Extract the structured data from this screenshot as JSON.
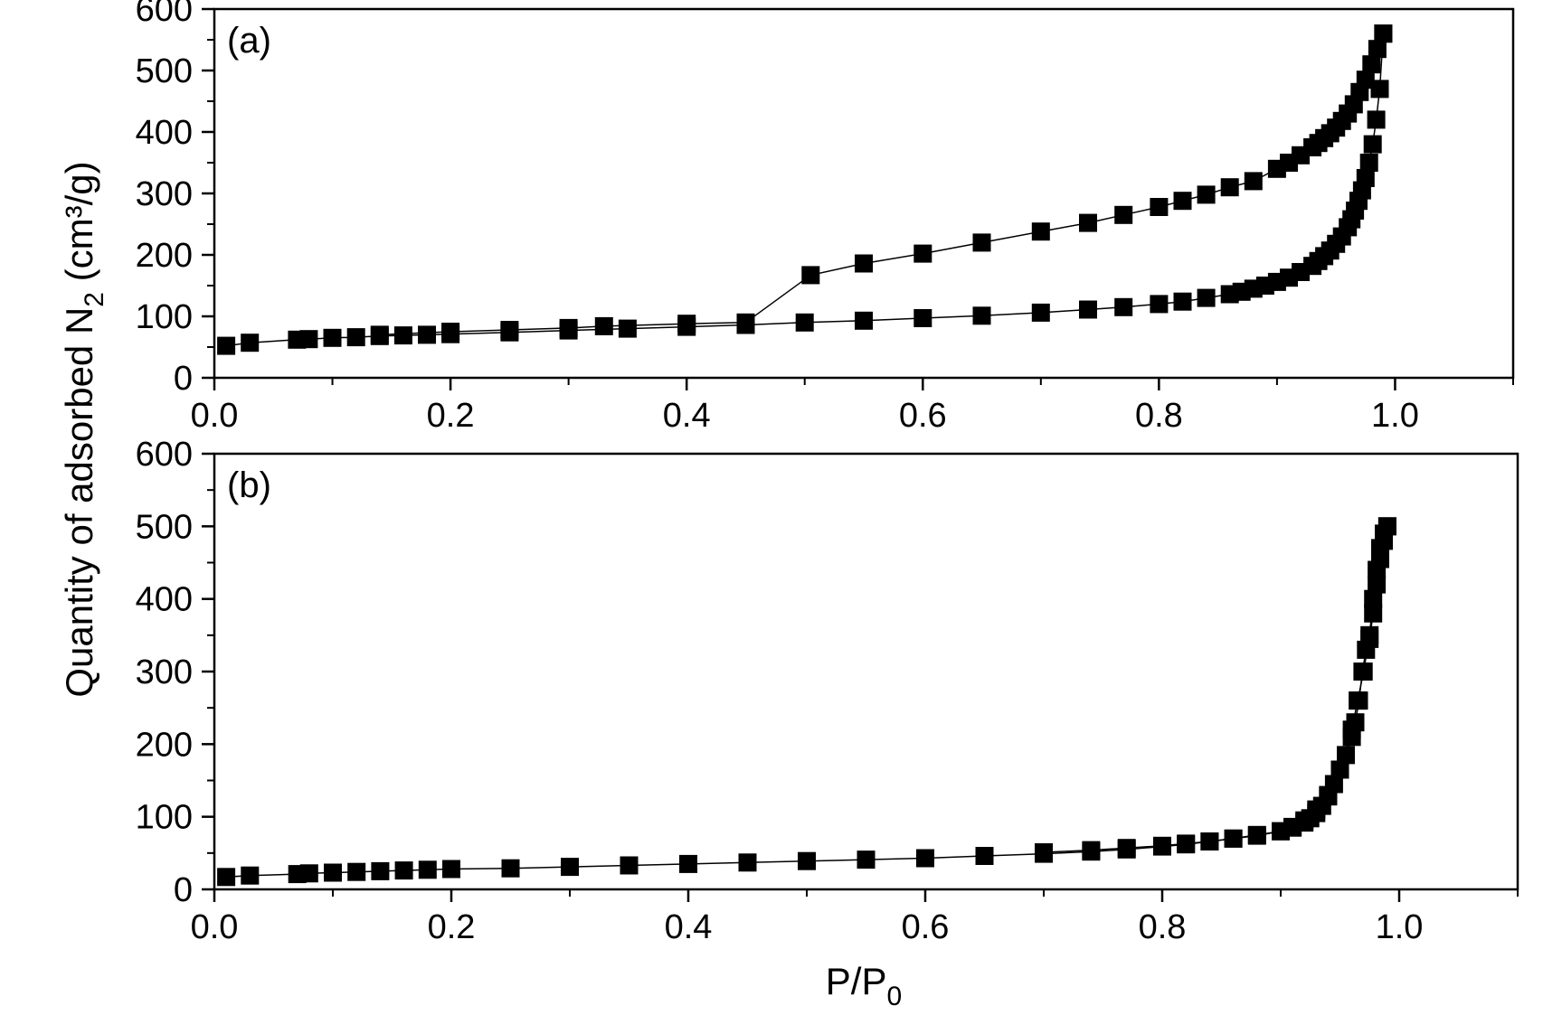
{
  "figure": {
    "ylabel_pre": "Quantity of adsorbed N",
    "ylabel_sub": "2",
    "ylabel_post": " (cm³/g)",
    "xlabel_pre": "P/P",
    "xlabel_sub": "0"
  },
  "colors": {
    "marker": "#000000",
    "line": "#000000",
    "axes": "#000000",
    "background": "#ffffff"
  },
  "chart_data": [
    {
      "type": "line",
      "panel_label": "(a)",
      "marker": "square",
      "grid": false,
      "xlim": [
        0.0,
        1.1
      ],
      "ylim": [
        0,
        600
      ],
      "xticks": [
        "0.0",
        "0.2",
        "0.4",
        "0.6",
        "0.8",
        "1.0"
      ],
      "xtick_values": [
        0.0,
        0.2,
        0.4,
        0.6,
        0.8,
        1.0
      ],
      "yticks": [
        "0",
        "100",
        "200",
        "300",
        "400",
        "500",
        "600"
      ],
      "ytick_values": [
        0,
        100,
        200,
        300,
        400,
        500,
        600
      ],
      "series": [
        {
          "x": [
            0.01,
            0.03,
            0.07,
            0.08,
            0.1,
            0.12,
            0.14,
            0.16,
            0.18,
            0.2,
            0.25,
            0.3,
            0.35,
            0.4,
            0.45,
            0.5,
            0.55,
            0.6,
            0.65,
            0.7,
            0.74,
            0.77,
            0.8,
            0.82,
            0.84,
            0.86,
            0.87,
            0.88,
            0.89,
            0.9,
            0.91,
            0.92,
            0.93,
            0.935,
            0.94,
            0.945,
            0.95,
            0.955,
            0.96,
            0.963,
            0.966,
            0.969,
            0.972,
            0.975,
            0.978,
            0.981,
            0.984,
            0.987,
            0.99
          ],
          "y": [
            52,
            57,
            62,
            63,
            65,
            66,
            68,
            69,
            70,
            71,
            74,
            77,
            80,
            83,
            86,
            90,
            93,
            97,
            101,
            106,
            111,
            115,
            120,
            124,
            130,
            136,
            140,
            145,
            150,
            156,
            163,
            172,
            182,
            190,
            198,
            207,
            218,
            230,
            245,
            258,
            272,
            288,
            305,
            325,
            350,
            380,
            420,
            470,
            560
          ]
        },
        {
          "x": [
            0.99,
            0.985,
            0.98,
            0.975,
            0.97,
            0.965,
            0.96,
            0.955,
            0.95,
            0.945,
            0.94,
            0.935,
            0.93,
            0.92,
            0.91,
            0.9,
            0.88,
            0.86,
            0.84,
            0.82,
            0.8,
            0.77,
            0.74,
            0.7,
            0.65,
            0.6,
            0.55,
            0.505,
            0.45,
            0.4,
            0.33,
            0.3,
            0.25,
            0.2,
            0.14
          ],
          "y": [
            560,
            535,
            510,
            485,
            465,
            445,
            430,
            418,
            407,
            398,
            390,
            382,
            375,
            362,
            350,
            340,
            320,
            310,
            298,
            288,
            278,
            265,
            252,
            238,
            220,
            202,
            186,
            167,
            90,
            88,
            84,
            81,
            78,
            75,
            70
          ]
        }
      ]
    },
    {
      "type": "line",
      "panel_label": "(b)",
      "marker": "square",
      "grid": false,
      "xlim": [
        0.0,
        1.1
      ],
      "ylim": [
        0,
        600
      ],
      "xticks": [
        "0.0",
        "0.2",
        "0.4",
        "0.6",
        "0.8",
        "1.0"
      ],
      "xtick_values": [
        0.0,
        0.2,
        0.4,
        0.6,
        0.8,
        1.0
      ],
      "yticks": [
        "0",
        "100",
        "200",
        "300",
        "400",
        "500",
        "600"
      ],
      "ytick_values": [
        0,
        100,
        200,
        300,
        400,
        500,
        600
      ],
      "series": [
        {
          "x": [
            0.01,
            0.03,
            0.07,
            0.08,
            0.1,
            0.12,
            0.14,
            0.16,
            0.18,
            0.2,
            0.25,
            0.3,
            0.35,
            0.4,
            0.45,
            0.5,
            0.55,
            0.6,
            0.65,
            0.7,
            0.74,
            0.77,
            0.8,
            0.82,
            0.84,
            0.86,
            0.88,
            0.9,
            0.91,
            0.92,
            0.93,
            0.94,
            0.95,
            0.96,
            0.965,
            0.97,
            0.975,
            0.978,
            0.981,
            0.984,
            0.987,
            0.99
          ],
          "y": [
            17,
            19,
            21,
            22,
            23,
            24,
            25,
            26,
            27,
            28,
            29,
            31,
            33,
            35,
            37,
            39,
            41,
            43,
            46,
            49,
            52,
            55,
            59,
            62,
            66,
            70,
            74,
            80,
            86,
            95,
            110,
            130,
            165,
            220,
            260,
            300,
            350,
            400,
            440,
            470,
            490,
            500
          ]
        },
        {
          "x": [
            0.99,
            0.987,
            0.984,
            0.981,
            0.978,
            0.975,
            0.972,
            0.969,
            0.966,
            0.963,
            0.96,
            0.955,
            0.95,
            0.945,
            0.94,
            0.935,
            0.93,
            0.925,
            0.92,
            0.91,
            0.9,
            0.88,
            0.86,
            0.84,
            0.82,
            0.8,
            0.77,
            0.74,
            0.7
          ],
          "y": [
            500,
            480,
            455,
            420,
            380,
            345,
            330,
            300,
            260,
            230,
            210,
            185,
            165,
            145,
            128,
            115,
            105,
            98,
            92,
            85,
            80,
            75,
            70,
            66,
            63,
            60,
            57,
            54,
            51
          ]
        }
      ]
    }
  ]
}
